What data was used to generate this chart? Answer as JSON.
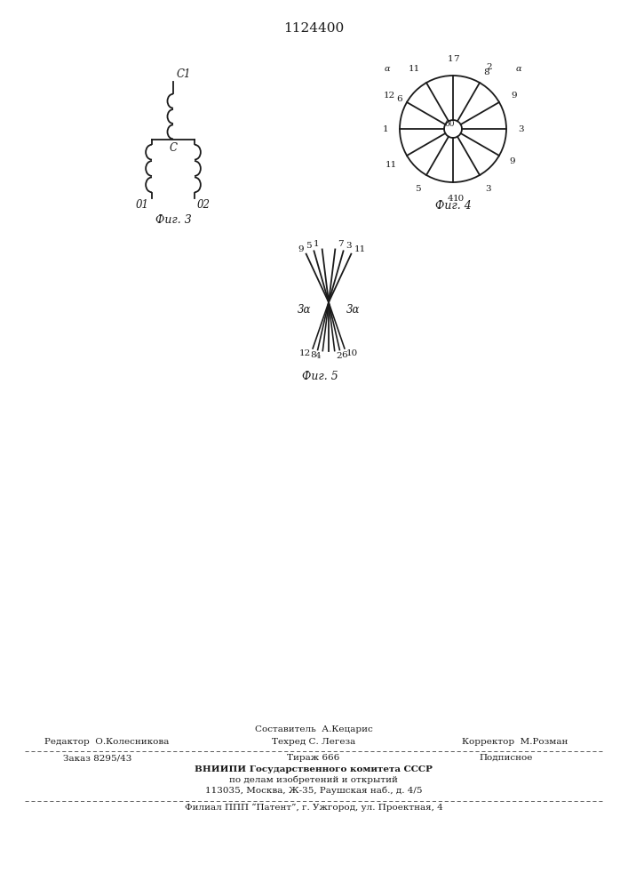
{
  "title": "1124400",
  "background_color": "#ffffff",
  "text_color": "#1a1a1a",
  "fig3_caption": "Фиг. 3",
  "fig4_caption": "Фиг. 4",
  "fig5_caption": "Фиг. 5",
  "footer_sestavitel": "Составитель  А.Кецарис",
  "footer_redaktor": "Редактор  О.Колесникова",
  "footer_tehred": "Техред С. Легеза",
  "footer_korrektor": "Корректор  М.Розман",
  "footer_zakaz": "Заказ 8295/43",
  "footer_tirazh": "Тираж 666",
  "footer_podpisnoe": "Подписное",
  "footer_vniipи": "ВНИИПИ Государственного комитета СССР",
  "footer_dela": "по делам изобретений и открытий",
  "footer_addr": "113035, Москва, Ж-35, Раушская наб., д. 4/5",
  "footer_filial": "Филиал ППП “Патент”, г. Ужгород, ул. Проектная, 4"
}
